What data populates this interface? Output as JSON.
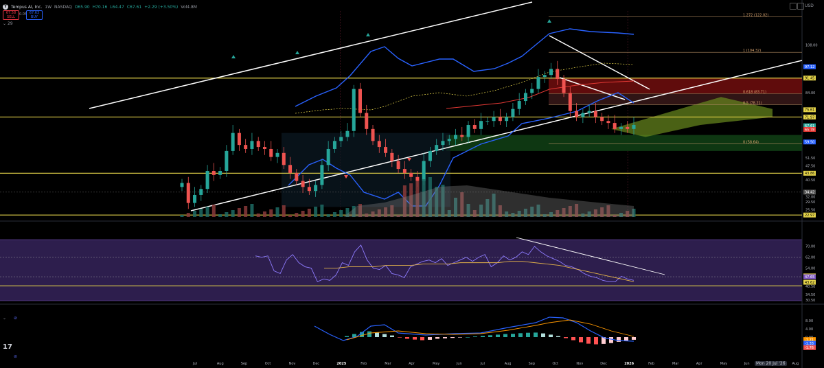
{
  "header": {
    "symbol": "Tempus AI, Inc.",
    "interval": "1W",
    "exchange": "NASDAQ",
    "o": "O65.90",
    "h": "H70.16",
    "l": "L64.47",
    "c": "C67.61",
    "chg": "+2.29 (+3.50%)",
    "vol": "Vol4.8M",
    "sell_price": "67.58",
    "sell_label": "SELL",
    "buy_price": "67.63",
    "buy_label": "BUY",
    "spread": "0.05",
    "indicator_count": "29",
    "currency": "USD",
    "goto_date": "Mon 20 Jul '26"
  },
  "colors": {
    "bg": "#000000",
    "up": "#26a69a",
    "down": "#ef5350",
    "band": "#2962ff",
    "level": "#e5d44a",
    "channel": "#ffffff",
    "rsi": "#7e57c2",
    "rsi_bg": "#2d1e4d",
    "ema": "#e53935",
    "signal": "#ff9800"
  },
  "chart_data": [
    {
      "type": "candlestick",
      "title": "Tempus AI, Inc. · 1W · NASDAQ",
      "x_tick_labels": [
        "Jul",
        "Aug",
        "Sep",
        "Oct",
        "Nov",
        "Dec",
        "2025",
        "Feb",
        "Mar",
        "Apr",
        "May",
        "Jun",
        "Jul",
        "Aug",
        "Sep",
        "Oct",
        "Nov",
        "Dec",
        "2026",
        "Feb",
        "Mar",
        "Apr",
        "May",
        "Jun",
        "Jul",
        "Aug"
      ],
      "y_axis_labels": [
        {
          "value": 108.0,
          "text": "108.00"
        },
        {
          "value": 97.12,
          "text": "97.12"
        },
        {
          "value": 91.45,
          "text": "91.45"
        },
        {
          "value": 84.0,
          "text": "84.00"
        },
        {
          "value": 75.61,
          "text": "75.61"
        },
        {
          "value": 71.97,
          "text": "71.97"
        },
        {
          "value": 67.61,
          "text": "67.61"
        },
        {
          "value": 65.78,
          "text": "65.78"
        },
        {
          "value": 59.5,
          "text": "59.50"
        },
        {
          "value": 51.5,
          "text": "51.50"
        },
        {
          "value": 47.5,
          "text": "47.50"
        },
        {
          "value": 43.86,
          "text": "43.86"
        },
        {
          "value": 40.5,
          "text": "40.50"
        },
        {
          "value": 34.42,
          "text": "34.42"
        },
        {
          "value": 32.0,
          "text": "32.00"
        },
        {
          "value": 29.5,
          "text": "29.50"
        },
        {
          "value": 25.5,
          "text": "25.50"
        },
        {
          "value": 22.97,
          "text": "22.97"
        }
      ],
      "horizontal_levels": [
        91.45,
        71.97,
        43.86,
        22.97
      ],
      "fib_levels": [
        {
          "label": "1.272 (122.02)",
          "value": 122.02
        },
        {
          "label": "1 (104.32)",
          "value": 104.32
        },
        {
          "label": "0.618 (83.71)",
          "value": 83.71
        },
        {
          "label": "0.5 (78.21)",
          "value": 78.21
        },
        {
          "label": "0 (58.64)",
          "value": 58.64
        }
      ],
      "close_series": [
        39,
        29,
        33,
        36,
        45,
        43,
        45,
        55,
        64,
        58,
        56,
        60,
        57,
        56,
        52,
        54,
        48,
        44,
        40,
        37,
        35,
        38,
        48,
        56,
        60,
        62,
        65,
        86,
        74,
        66,
        60,
        57,
        54,
        50,
        46,
        44,
        42,
        40,
        50,
        55,
        58,
        60,
        61,
        63,
        62,
        68,
        66,
        70,
        70,
        72,
        70,
        72,
        76,
        80,
        84,
        86,
        92,
        93,
        96,
        91,
        84,
        75,
        72,
        74,
        75,
        72,
        70,
        69,
        66,
        67,
        66,
        68
      ],
      "y_range": [
        22,
        125
      ]
    },
    {
      "type": "line",
      "title": "RSI",
      "y_axis_labels": [
        "70.00",
        "62.00",
        "54.00",
        "48.25",
        "47.65",
        "43.62",
        "40.50",
        "34.50",
        "30.50"
      ],
      "series": [
        {
          "values": [
            63,
            62,
            63,
            52,
            50,
            60,
            64,
            58,
            55,
            54,
            44,
            46,
            45,
            49,
            58,
            56,
            66,
            71,
            60,
            54,
            53,
            56,
            50,
            49,
            47,
            55,
            57,
            59,
            60,
            58,
            61,
            56,
            58,
            60,
            62,
            59,
            62,
            64,
            55,
            58,
            63,
            60,
            62,
            66,
            64,
            70,
            66,
            63,
            61,
            59,
            56,
            55,
            53,
            50,
            48,
            47,
            45,
            44,
            44,
            48,
            46,
            45
          ]
        },
        {
          "values": [
            54,
            54,
            55,
            55,
            55,
            56,
            56,
            56,
            57,
            57,
            57,
            58,
            58,
            58,
            58,
            59,
            59,
            58,
            57,
            56,
            54,
            52,
            50,
            48,
            46,
            44
          ]
        }
      ],
      "y_range": [
        30,
        75
      ]
    },
    {
      "type": "bar",
      "title": "MACD",
      "y_axis_labels": [
        "8.00",
        "4.00",
        "0.00",
        "-1.21",
        "-1.33",
        "-1.76"
      ],
      "values": [
        0.5,
        1.5,
        2.5,
        2.8,
        2.2,
        1.5,
        0.8,
        -0.2,
        -0.8,
        -1.2,
        -1.5,
        -1.3,
        -0.8,
        -0.6,
        -0.4,
        -0.2,
        0.0,
        0.3,
        0.6,
        0.9,
        1.2,
        1.5,
        1.6,
        1.9,
        2.1,
        2.2,
        1.8,
        1.2,
        0.5,
        -0.5,
        -1.5,
        -2.5,
        -3.2,
        -3.5,
        -3.3,
        -2.9,
        -2.3,
        -1.8,
        -1.3
      ],
      "y_range": [
        -5,
        12
      ]
    }
  ]
}
